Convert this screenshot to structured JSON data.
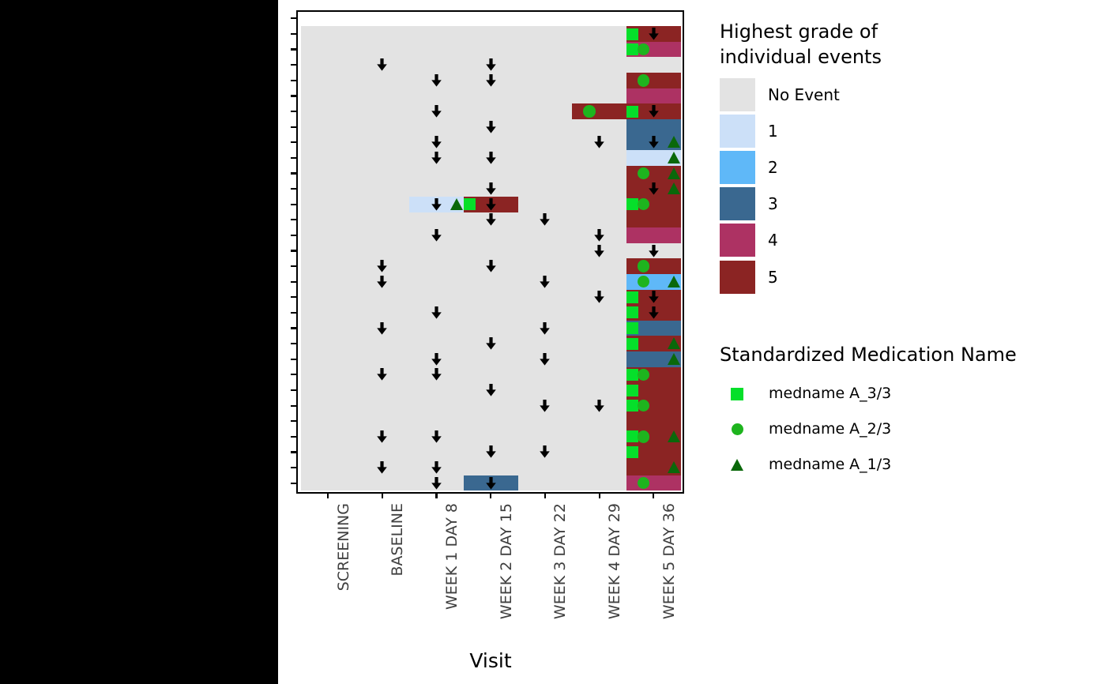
{
  "figure": {
    "background": "#FFFFFF",
    "left_panel_color": "#000000"
  },
  "chart_data": {
    "type": "heatmap",
    "description": "Adverse event grade heatmap: one unlabeled row per individual event (31 y ticks, 30 tile rows), columns are study visits. Cell color = highest grade; overlaid markers = concomitant medications (green square/circle/triangle) and black down-arrows.",
    "xlabel": "Visit",
    "x_categories": [
      "SCREENING",
      "BASELINE",
      "WEEK 1 DAY 8",
      "WEEK 2 DAY 15",
      "WEEK 3 DAY 22",
      "WEEK 4 DAY 29",
      "WEEK 5 DAY 36"
    ],
    "n_event_rows": 30,
    "grade_levels": [
      "No Event",
      "1",
      "2",
      "3",
      "4",
      "5"
    ],
    "grade_colors": [
      "#E3E3E3",
      "#CCE0F8",
      "#5FB8F8",
      "#3A6890",
      "#AD3263",
      "#8B2423"
    ],
    "marker_colors": {
      "square": "#05DF2A",
      "circle": "#1EB41E",
      "triangle": "#0A680A",
      "arrow": "#000000"
    },
    "rows": [
      {
        "cells": {
          "7": 5
        },
        "markers": [
          [
            "square",
            7
          ],
          [
            "arrow",
            7
          ]
        ]
      },
      {
        "cells": {
          "7": 4
        },
        "markers": [
          [
            "square",
            7
          ],
          [
            "circle",
            7
          ]
        ]
      },
      {
        "cells": {},
        "markers": [
          [
            "arrow",
            2
          ],
          [
            "arrow",
            4
          ]
        ]
      },
      {
        "cells": {
          "7": 5
        },
        "markers": [
          [
            "arrow",
            3
          ],
          [
            "arrow",
            4
          ],
          [
            "circle",
            7
          ]
        ]
      },
      {
        "cells": {
          "7": 4
        },
        "markers": []
      },
      {
        "cells": {
          "6": 5,
          "7": 5
        },
        "markers": [
          [
            "arrow",
            3
          ],
          [
            "circle",
            6
          ],
          [
            "square",
            7
          ],
          [
            "arrow",
            7
          ]
        ]
      },
      {
        "cells": {
          "7": 3
        },
        "markers": [
          [
            "arrow",
            4
          ]
        ]
      },
      {
        "cells": {
          "7": 3
        },
        "markers": [
          [
            "arrow",
            3
          ],
          [
            "arrow",
            6
          ],
          [
            "arrow",
            7
          ],
          [
            "triangle",
            7
          ]
        ]
      },
      {
        "cells": {
          "7": 1
        },
        "markers": [
          [
            "arrow",
            3
          ],
          [
            "arrow",
            4
          ],
          [
            "triangle",
            7
          ]
        ]
      },
      {
        "cells": {
          "7": 5
        },
        "markers": [
          [
            "circle",
            7
          ],
          [
            "triangle",
            7
          ]
        ]
      },
      {
        "cells": {
          "7": 5
        },
        "markers": [
          [
            "arrow",
            4
          ],
          [
            "arrow",
            7
          ],
          [
            "triangle",
            7
          ]
        ]
      },
      {
        "cells": {
          "3": 1,
          "4": 5,
          "7": 5
        },
        "markers": [
          [
            "arrow",
            3
          ],
          [
            "triangle",
            3
          ],
          [
            "square",
            4
          ],
          [
            "arrow",
            4
          ],
          [
            "square",
            7
          ],
          [
            "circle",
            7
          ]
        ]
      },
      {
        "cells": {
          "7": 5
        },
        "markers": [
          [
            "arrow",
            4
          ],
          [
            "arrow",
            5
          ]
        ]
      },
      {
        "cells": {
          "7": 4
        },
        "markers": [
          [
            "arrow",
            3
          ],
          [
            "arrow",
            6
          ]
        ]
      },
      {
        "cells": {},
        "markers": [
          [
            "arrow",
            6
          ],
          [
            "arrow",
            7
          ]
        ]
      },
      {
        "cells": {
          "7": 5
        },
        "markers": [
          [
            "arrow",
            2
          ],
          [
            "arrow",
            4
          ],
          [
            "circle",
            7
          ]
        ]
      },
      {
        "cells": {
          "7": 2
        },
        "markers": [
          [
            "arrow",
            2
          ],
          [
            "arrow",
            5
          ],
          [
            "circle",
            7
          ],
          [
            "triangle",
            7
          ]
        ]
      },
      {
        "cells": {
          "7": 5
        },
        "markers": [
          [
            "arrow",
            6
          ],
          [
            "square",
            7
          ],
          [
            "arrow",
            7
          ]
        ]
      },
      {
        "cells": {
          "7": 5
        },
        "markers": [
          [
            "arrow",
            3
          ],
          [
            "square",
            7
          ],
          [
            "arrow",
            7
          ]
        ]
      },
      {
        "cells": {
          "7": 3
        },
        "markers": [
          [
            "arrow",
            2
          ],
          [
            "arrow",
            5
          ],
          [
            "square",
            7
          ]
        ]
      },
      {
        "cells": {
          "7": 5
        },
        "markers": [
          [
            "arrow",
            4
          ],
          [
            "square",
            7
          ],
          [
            "triangle",
            7
          ]
        ]
      },
      {
        "cells": {
          "7": 3
        },
        "markers": [
          [
            "arrow",
            3
          ],
          [
            "arrow",
            5
          ],
          [
            "triangle",
            7
          ]
        ]
      },
      {
        "cells": {
          "7": 5
        },
        "markers": [
          [
            "arrow",
            2
          ],
          [
            "arrow",
            3
          ],
          [
            "square",
            7
          ],
          [
            "circle",
            7
          ]
        ]
      },
      {
        "cells": {
          "7": 5
        },
        "markers": [
          [
            "arrow",
            4
          ],
          [
            "square",
            7
          ]
        ]
      },
      {
        "cells": {
          "7": 5
        },
        "markers": [
          [
            "arrow",
            5
          ],
          [
            "arrow",
            6
          ],
          [
            "square",
            7
          ],
          [
            "circle",
            7
          ]
        ]
      },
      {
        "cells": {
          "7": 5
        },
        "markers": []
      },
      {
        "cells": {
          "7": 5
        },
        "markers": [
          [
            "arrow",
            2
          ],
          [
            "arrow",
            3
          ],
          [
            "square",
            7
          ],
          [
            "circle",
            7
          ],
          [
            "triangle",
            7
          ]
        ]
      },
      {
        "cells": {
          "7": 5
        },
        "markers": [
          [
            "arrow",
            4
          ],
          [
            "arrow",
            5
          ],
          [
            "square",
            7
          ]
        ]
      },
      {
        "cells": {
          "7": 5
        },
        "markers": [
          [
            "arrow",
            2
          ],
          [
            "arrow",
            3
          ],
          [
            "triangle",
            7
          ]
        ]
      },
      {
        "cells": {
          "4": 3,
          "7": 4
        },
        "markers": [
          [
            "arrow",
            3
          ],
          [
            "arrow",
            4
          ],
          [
            "circle",
            7
          ]
        ]
      }
    ],
    "legend_grade": {
      "title_line1": "Highest grade of",
      "title_line2": "individual events",
      "items": [
        {
          "label": "No Event",
          "color": "#E3E3E3"
        },
        {
          "label": "1",
          "color": "#CCE0F8"
        },
        {
          "label": "2",
          "color": "#5FB8F8"
        },
        {
          "label": "3",
          "color": "#3A6890"
        },
        {
          "label": "4",
          "color": "#AD3263"
        },
        {
          "label": "5",
          "color": "#8B2423"
        }
      ]
    },
    "legend_med": {
      "title": "Standardized Medication Name",
      "items": [
        {
          "shape": "square",
          "color": "#05DF2A",
          "label": "medname A_3/3"
        },
        {
          "shape": "circle",
          "color": "#1EB41E",
          "label": "medname A_2/3"
        },
        {
          "shape": "triangle",
          "color": "#0A680A",
          "label": "medname A_1/3"
        }
      ]
    }
  }
}
